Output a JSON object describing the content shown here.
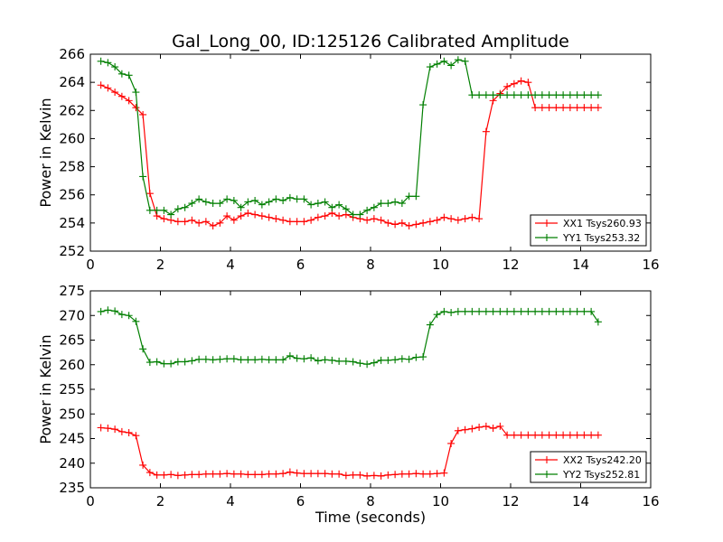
{
  "title": "Gal_Long_00, ID:125126 Calibrated Amplitude",
  "xlabel": "Time (seconds)",
  "colors": {
    "red": "#ff0000",
    "green": "#007f00"
  },
  "chart_data": [
    {
      "type": "line",
      "title": "Gal_Long_00, ID:125126 Calibrated Amplitude",
      "xlabel": "",
      "ylabel": "Power in Kelvin",
      "xlim": [
        0,
        16
      ],
      "ylim": [
        252,
        266
      ],
      "xticks": [
        0,
        2,
        4,
        6,
        8,
        10,
        12,
        14,
        16
      ],
      "yticks": [
        252,
        254,
        256,
        258,
        260,
        262,
        264,
        266
      ],
      "grid": false,
      "legend_position": "bottom-right",
      "x": [
        0.3,
        0.5,
        0.7,
        0.9,
        1.1,
        1.3,
        1.5,
        1.7,
        1.9,
        2.1,
        2.3,
        2.5,
        2.7,
        2.9,
        3.1,
        3.3,
        3.5,
        3.7,
        3.9,
        4.1,
        4.3,
        4.5,
        4.7,
        4.9,
        5.1,
        5.3,
        5.5,
        5.7,
        5.9,
        6.1,
        6.3,
        6.5,
        6.7,
        6.9,
        7.1,
        7.3,
        7.5,
        7.7,
        7.9,
        8.1,
        8.3,
        8.5,
        8.7,
        8.9,
        9.1,
        9.3,
        9.5,
        9.7,
        9.9,
        10.1,
        10.3,
        10.5,
        10.7,
        10.9,
        11.1,
        11.3,
        11.5,
        11.7,
        11.9,
        12.1,
        12.3,
        12.5,
        12.7,
        12.9,
        13.1,
        13.3,
        13.5,
        13.7,
        13.9,
        14.1,
        14.3,
        14.5
      ],
      "series": [
        {
          "name": "XX1 Tsys260.93",
          "color": "#ff0000",
          "values": [
            263.8,
            263.6,
            263.3,
            263.0,
            262.7,
            262.2,
            261.7,
            256.1,
            254.5,
            254.3,
            254.2,
            254.1,
            254.1,
            254.2,
            254.0,
            254.1,
            253.8,
            254.0,
            254.5,
            254.2,
            254.5,
            254.7,
            254.6,
            254.5,
            254.4,
            254.3,
            254.2,
            254.1,
            254.1,
            254.1,
            254.2,
            254.4,
            254.5,
            254.7,
            254.5,
            254.6,
            254.4,
            254.3,
            254.2,
            254.3,
            254.2,
            254.0,
            253.9,
            254.0,
            253.8,
            253.9,
            254.0,
            254.1,
            254.2,
            254.4,
            254.3,
            254.2,
            254.3,
            254.4,
            254.3,
            260.5,
            262.7,
            263.2,
            263.7,
            263.9,
            264.1,
            264.0,
            262.2,
            262.2,
            262.2,
            262.2,
            262.2,
            262.2,
            262.2,
            262.2,
            262.2,
            262.2
          ]
        },
        {
          "name": "YY1 Tsys253.32",
          "color": "#007f00",
          "values": [
            265.5,
            265.4,
            265.1,
            264.6,
            264.5,
            263.3,
            257.3,
            254.9,
            254.9,
            254.9,
            254.6,
            255.0,
            255.1,
            255.4,
            255.7,
            255.5,
            255.4,
            255.4,
            255.7,
            255.6,
            255.1,
            255.5,
            255.6,
            255.3,
            255.5,
            255.7,
            255.6,
            255.8,
            255.7,
            255.7,
            255.3,
            255.4,
            255.5,
            255.1,
            255.3,
            255.0,
            254.6,
            254.6,
            254.9,
            255.1,
            255.4,
            255.4,
            255.5,
            255.4,
            255.9,
            255.9,
            262.4,
            265.1,
            265.3,
            265.5,
            265.2,
            265.6,
            265.5,
            263.1,
            263.1,
            263.1,
            263.1,
            263.1,
            263.1,
            263.1,
            263.1,
            263.1,
            263.1,
            263.1,
            263.1,
            263.1,
            263.1,
            263.1,
            263.1,
            263.1,
            263.1,
            263.1
          ]
        }
      ]
    },
    {
      "type": "line",
      "title": "",
      "xlabel": "Time (seconds)",
      "ylabel": "Power in Kelvin",
      "xlim": [
        0,
        16
      ],
      "ylim": [
        235,
        275
      ],
      "xticks": [
        0,
        2,
        4,
        6,
        8,
        10,
        12,
        14,
        16
      ],
      "yticks": [
        235,
        240,
        245,
        250,
        255,
        260,
        265,
        270,
        275
      ],
      "grid": false,
      "legend_position": "bottom-right",
      "x": [
        0.3,
        0.5,
        0.7,
        0.9,
        1.1,
        1.3,
        1.5,
        1.7,
        1.9,
        2.1,
        2.3,
        2.5,
        2.7,
        2.9,
        3.1,
        3.3,
        3.5,
        3.7,
        3.9,
        4.1,
        4.3,
        4.5,
        4.7,
        4.9,
        5.1,
        5.3,
        5.5,
        5.7,
        5.9,
        6.1,
        6.3,
        6.5,
        6.7,
        6.9,
        7.1,
        7.3,
        7.5,
        7.7,
        7.9,
        8.1,
        8.3,
        8.5,
        8.7,
        8.9,
        9.1,
        9.3,
        9.5,
        9.7,
        9.9,
        10.1,
        10.3,
        10.5,
        10.7,
        10.9,
        11.1,
        11.3,
        11.5,
        11.7,
        11.9,
        12.1,
        12.3,
        12.5,
        12.7,
        12.9,
        13.1,
        13.3,
        13.5,
        13.7,
        13.9,
        14.1,
        14.3,
        14.5
      ],
      "series": [
        {
          "name": "XX2 Tsys242.20",
          "color": "#ff0000",
          "values": [
            247.2,
            247.1,
            246.9,
            246.4,
            246.2,
            245.6,
            239.6,
            238.1,
            237.6,
            237.6,
            237.7,
            237.5,
            237.6,
            237.7,
            237.7,
            237.8,
            237.8,
            237.8,
            237.9,
            237.8,
            237.8,
            237.7,
            237.7,
            237.7,
            237.8,
            237.8,
            237.9,
            238.2,
            238.0,
            237.9,
            237.9,
            237.9,
            237.9,
            237.8,
            237.8,
            237.5,
            237.6,
            237.6,
            237.4,
            237.5,
            237.4,
            237.6,
            237.7,
            237.8,
            237.8,
            237.9,
            237.8,
            237.8,
            237.9,
            238.0,
            244.0,
            246.6,
            246.8,
            247.0,
            247.3,
            247.5,
            247.1,
            247.5,
            245.7,
            245.7,
            245.7,
            245.7,
            245.7,
            245.7,
            245.7,
            245.7,
            245.7,
            245.7,
            245.7,
            245.7,
            245.7,
            245.7
          ]
        },
        {
          "name": "YY2 Tsys252.81",
          "color": "#007f00",
          "values": [
            270.8,
            271.1,
            270.9,
            270.2,
            270.0,
            268.8,
            263.2,
            260.5,
            260.6,
            260.2,
            260.2,
            260.6,
            260.6,
            260.8,
            261.1,
            261.1,
            261.0,
            261.1,
            261.2,
            261.2,
            261.0,
            261.0,
            261.0,
            261.1,
            261.0,
            261.0,
            261.0,
            261.8,
            261.3,
            261.2,
            261.4,
            260.8,
            261.0,
            260.9,
            260.7,
            260.7,
            260.6,
            260.3,
            260.1,
            260.4,
            260.9,
            260.9,
            261.0,
            261.2,
            261.1,
            261.5,
            261.6,
            268.1,
            270.2,
            270.8,
            270.6,
            270.8,
            270.8,
            270.8,
            270.8,
            270.8,
            270.8,
            270.8,
            270.8,
            270.8,
            270.8,
            270.8,
            270.8,
            270.8,
            270.8,
            270.8,
            270.8,
            270.8,
            270.8,
            270.8,
            270.8,
            268.7
          ]
        }
      ]
    }
  ]
}
